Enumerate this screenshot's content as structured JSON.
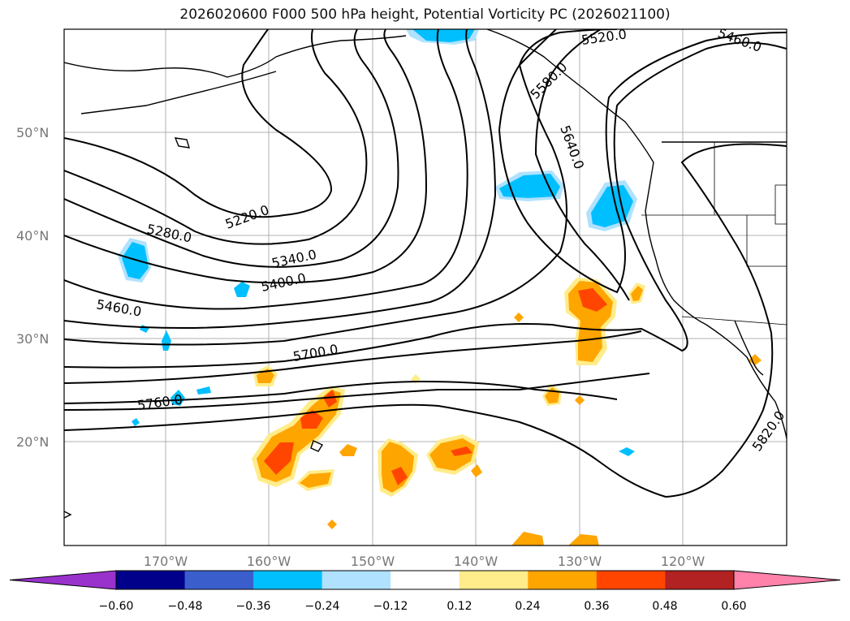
{
  "title": "2026020600 F000 500 hPa height, Potential Vorticity PC (2026021100)",
  "map": {
    "lat_labels": [
      "50°N",
      "40°N",
      "30°N",
      "20°N"
    ],
    "lon_labels": [
      "170°W",
      "160°W",
      "150°W",
      "140°W",
      "130°W",
      "120°W"
    ],
    "contour_labels": [
      "5220.0",
      "5280.0",
      "5340.0",
      "5400.0",
      "5460.0",
      "5460.0",
      "5520.0",
      "5580.0",
      "5640.0",
      "5700.0",
      "5760.0",
      "5820.0"
    ]
  },
  "colorbar": {
    "ticks": [
      "−0.60",
      "−0.48",
      "−0.36",
      "−0.24",
      "−0.12",
      "0.12",
      "0.24",
      "0.36",
      "0.48",
      "0.60"
    ],
    "colors": [
      "#9932cc",
      "#00008b",
      "#3a5fcd",
      "#00bfff",
      "#b0e2ff",
      "#ffffff",
      "#ffec8b",
      "#ffa500",
      "#ff4500",
      "#b22222",
      "#ff82ab"
    ]
  }
}
